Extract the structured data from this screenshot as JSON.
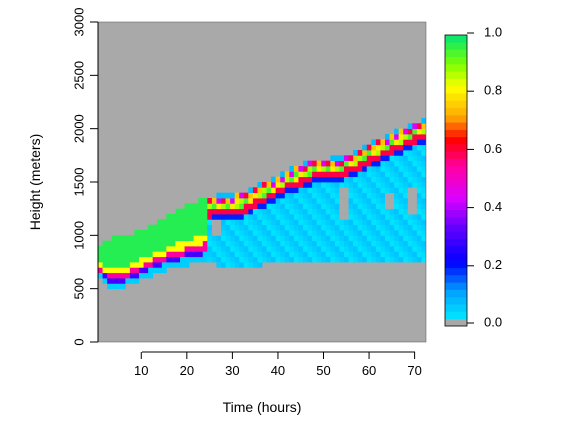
{
  "chart_data": {
    "type": "heatmap",
    "title": "",
    "xlabel": "Time (hours)",
    "ylabel": "Height (meters)",
    "xlim": [
      0.5,
      72.5
    ],
    "ylim": [
      0,
      3000
    ],
    "x_ticks": [
      10,
      20,
      30,
      40,
      50,
      60,
      70
    ],
    "x_tick_labels": [
      "10",
      "20",
      "30",
      "40",
      "50",
      "60",
      "70"
    ],
    "y_ticks": [
      0,
      500,
      1000,
      1500,
      2000,
      2500,
      3000
    ],
    "y_tick_labels": [
      "0",
      "500",
      "1000",
      "1500",
      "2000",
      "2500",
      "3000"
    ],
    "colorbar": {
      "range": [
        0,
        1
      ],
      "ticks": [
        0,
        0.2,
        0.4,
        0.6,
        0.8,
        1
      ],
      "tick_labels": [
        "0.0",
        "0.2",
        "0.4",
        "0.6",
        "0.8",
        "1.0"
      ],
      "background_color": "#a9a9a9",
      "stops": [
        {
          "value": 0.0,
          "color": "#a9a9a9"
        },
        {
          "value": 0.03,
          "color": "#00e5ff"
        },
        {
          "value": 0.12,
          "color": "#00a0ff"
        },
        {
          "value": 0.22,
          "color": "#0000ff"
        },
        {
          "value": 0.34,
          "color": "#6400ff"
        },
        {
          "value": 0.44,
          "color": "#dc00ff"
        },
        {
          "value": 0.55,
          "color": "#ff00a0"
        },
        {
          "value": 0.64,
          "color": "#ff0000"
        },
        {
          "value": 0.72,
          "color": "#ffaa00"
        },
        {
          "value": 0.82,
          "color": "#ffff00"
        },
        {
          "value": 0.9,
          "color": "#7cff00"
        },
        {
          "value": 1.0,
          "color": "#00e676"
        }
      ]
    },
    "grid": false,
    "layer_boundaries": [
      {
        "time": 1,
        "base": 600,
        "top": 880
      },
      {
        "time": 3,
        "base": 500,
        "top": 930
      },
      {
        "time": 6,
        "base": 510,
        "top": 950
      },
      {
        "time": 9,
        "base": 560,
        "top": 1000
      },
      {
        "time": 12,
        "base": 620,
        "top": 1050
      },
      {
        "time": 15,
        "base": 670,
        "top": 1120
      },
      {
        "time": 18,
        "base": 700,
        "top": 1200
      },
      {
        "time": 21,
        "base": 730,
        "top": 1260
      },
      {
        "time": 24,
        "base": 750,
        "top": 1300
      },
      {
        "time": 27,
        "base": 720,
        "top": 1350
      },
      {
        "time": 30,
        "base": 680,
        "top": 1350
      },
      {
        "time": 33,
        "base": 700,
        "top": 1370
      },
      {
        "time": 36,
        "base": 720,
        "top": 1440
      },
      {
        "time": 39,
        "base": 740,
        "top": 1500
      },
      {
        "time": 42,
        "base": 740,
        "top": 1580
      },
      {
        "time": 45,
        "base": 750,
        "top": 1620
      },
      {
        "time": 48,
        "base": 760,
        "top": 1680
      },
      {
        "time": 51,
        "base": 760,
        "top": 1680
      },
      {
        "time": 54,
        "base": 750,
        "top": 1700
      },
      {
        "time": 57,
        "base": 750,
        "top": 1750
      },
      {
        "time": 60,
        "base": 760,
        "top": 1820
      },
      {
        "time": 63,
        "base": 740,
        "top": 1880
      },
      {
        "time": 66,
        "base": 740,
        "top": 1940
      },
      {
        "time": 69,
        "base": 740,
        "top": 2000
      },
      {
        "time": 72,
        "base": 750,
        "top": 2050
      }
    ]
  }
}
